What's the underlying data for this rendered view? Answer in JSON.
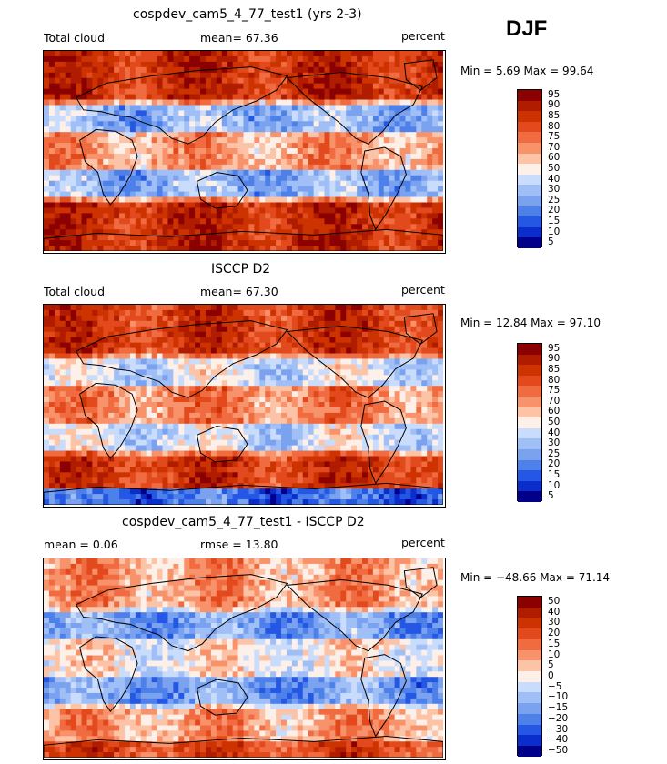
{
  "season": "DJF",
  "panels": [
    {
      "id": "model",
      "title": "cospdev_cam5_4_77_test1 (yrs 2-3)",
      "left_text": "Total cloud",
      "mid_text": "mean=  67.36",
      "right_text": "percent",
      "minmax": "Min =   5.69 Max =  99.64",
      "colorbar": {
        "labels": [
          "95",
          "90",
          "85",
          "80",
          "75",
          "70",
          "60",
          "50",
          "40",
          "30",
          "25",
          "20",
          "15",
          "10",
          "5"
        ],
        "colors": [
          "#8b0000",
          "#b01c00",
          "#cd3300",
          "#e24a1e",
          "#f06c40",
          "#f8926b",
          "#fcc3a6",
          "#fdf0e9",
          "#c9dcfb",
          "#9fbff6",
          "#7aa2ef",
          "#4e80ea",
          "#2457e3",
          "#0a2dcc",
          "#00008b"
        ]
      }
    },
    {
      "id": "obs",
      "title": "ISCCP D2",
      "left_text": "Total cloud",
      "mid_text": "mean=  67.30",
      "right_text": "percent",
      "minmax": "Min =  12.84 Max =  97.10",
      "colorbar": {
        "labels": [
          "95",
          "90",
          "85",
          "80",
          "75",
          "70",
          "60",
          "50",
          "40",
          "30",
          "25",
          "20",
          "15",
          "10",
          "5"
        ],
        "colors": [
          "#8b0000",
          "#b01c00",
          "#cd3300",
          "#e24a1e",
          "#f06c40",
          "#f8926b",
          "#fcc3a6",
          "#fdf0e9",
          "#c9dcfb",
          "#9fbff6",
          "#7aa2ef",
          "#4e80ea",
          "#2457e3",
          "#0a2dcc",
          "#00008b"
        ]
      }
    },
    {
      "id": "diff",
      "title": "cospdev_cam5_4_77_test1 - ISCCP D2",
      "left_text": "mean =    0.06",
      "mid_text": "rmse =   13.80",
      "right_text": "percent",
      "minmax": "Min = −48.66 Max =  71.14",
      "colorbar": {
        "labels": [
          "50",
          "40",
          "30",
          "20",
          "15",
          "10",
          "5",
          "0",
          "−5",
          "−10",
          "−15",
          "−20",
          "−30",
          "−40",
          "−50"
        ],
        "colors": [
          "#8b0000",
          "#b01c00",
          "#cd3300",
          "#e24a1e",
          "#f06c40",
          "#f8926b",
          "#fcc3a6",
          "#fdf0e9",
          "#c9dcfb",
          "#9fbff6",
          "#7aa2ef",
          "#4e80ea",
          "#2457e3",
          "#0a2dcc",
          "#00008b"
        ]
      }
    }
  ]
}
